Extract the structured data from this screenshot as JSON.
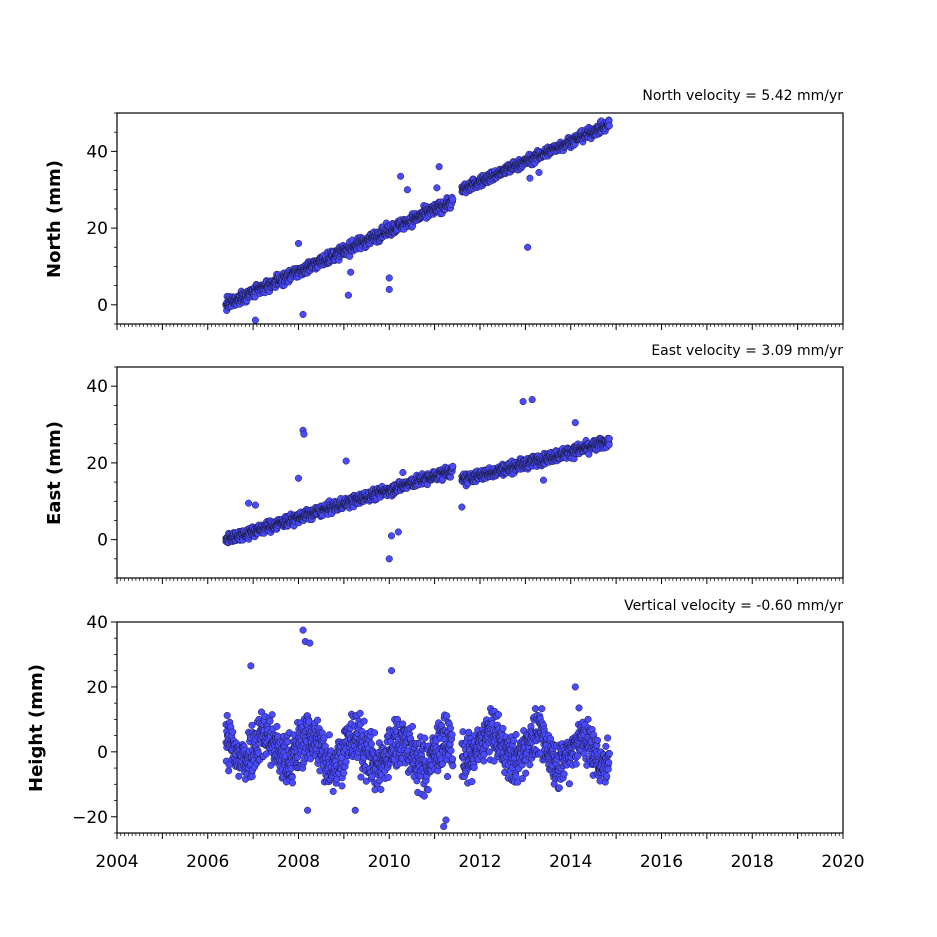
{
  "chart_data": [
    {
      "type": "scatter",
      "title": "North velocity = 5.42 mm/yr",
      "xlabel": "",
      "ylabel": "North (mm)",
      "xlim": [
        2004,
        2020
      ],
      "ylim": [
        -5,
        50
      ],
      "yticks": [
        0,
        20,
        40
      ],
      "xtick_labels_shown": false,
      "color": "#4a4aff",
      "segments": [
        {
          "x_start": 2006.4,
          "x_end": 2011.4,
          "y_start": 0,
          "y_end": 27,
          "noise": 1.5
        },
        {
          "x_start": 2011.6,
          "x_end": 2014.85,
          "y_start": 30,
          "y_end": 47,
          "noise": 1.3
        }
      ],
      "outliers": [
        {
          "x": 2007.05,
          "y": -4
        },
        {
          "x": 2008.1,
          "y": -2.5
        },
        {
          "x": 2008.0,
          "y": 16
        },
        {
          "x": 2009.1,
          "y": 2.5
        },
        {
          "x": 2009.15,
          "y": 8.5
        },
        {
          "x": 2010.0,
          "y": 7
        },
        {
          "x": 2010.0,
          "y": 4
        },
        {
          "x": 2010.25,
          "y": 33.5
        },
        {
          "x": 2010.4,
          "y": 30
        },
        {
          "x": 2011.1,
          "y": 36
        },
        {
          "x": 2011.05,
          "y": 30.5
        },
        {
          "x": 2013.05,
          "y": 15
        },
        {
          "x": 2013.1,
          "y": 33
        },
        {
          "x": 2013.3,
          "y": 34.5
        }
      ]
    },
    {
      "type": "scatter",
      "title": "East velocity = 3.09 mm/yr",
      "xlabel": "",
      "ylabel": "East (mm)",
      "xlim": [
        2004,
        2020
      ],
      "ylim": [
        -10,
        45
      ],
      "yticks": [
        0,
        20,
        40
      ],
      "xtick_labels_shown": false,
      "color": "#4a4aff",
      "segments": [
        {
          "x_start": 2006.4,
          "x_end": 2011.4,
          "y_start": 0,
          "y_end": 18,
          "noise": 1.4
        },
        {
          "x_start": 2011.6,
          "x_end": 2014.85,
          "y_start": 15.5,
          "y_end": 25.5,
          "noise": 1.4
        }
      ],
      "outliers": [
        {
          "x": 2008.1,
          "y": 28.5
        },
        {
          "x": 2008.12,
          "y": 27.5
        },
        {
          "x": 2008.0,
          "y": 16
        },
        {
          "x": 2006.9,
          "y": 9.5
        },
        {
          "x": 2007.05,
          "y": 9
        },
        {
          "x": 2009.05,
          "y": 20.5
        },
        {
          "x": 2010.0,
          "y": -5
        },
        {
          "x": 2010.05,
          "y": 1
        },
        {
          "x": 2010.2,
          "y": 2
        },
        {
          "x": 2010.3,
          "y": 17.5
        },
        {
          "x": 2011.6,
          "y": 8.5
        },
        {
          "x": 2012.95,
          "y": 36
        },
        {
          "x": 2013.15,
          "y": 36.5
        },
        {
          "x": 2013.4,
          "y": 15.5
        },
        {
          "x": 2014.1,
          "y": 30.5
        }
      ]
    },
    {
      "type": "scatter",
      "title": "Vertical velocity = -0.60 mm/yr",
      "xlabel": "",
      "ylabel": "Height (mm)",
      "xlim": [
        2004,
        2020
      ],
      "ylim": [
        -25,
        40
      ],
      "yticks": [
        -20,
        0,
        20,
        40
      ],
      "xticks": [
        2004,
        2006,
        2008,
        2010,
        2012,
        2014,
        2016,
        2018,
        2020
      ],
      "xtick_labels_shown": true,
      "color": "#4a4aff",
      "segments": [
        {
          "x_start": 2006.4,
          "x_end": 2011.4,
          "y_start": 2,
          "y_end": -1,
          "noise": 8
        },
        {
          "x_start": 2011.6,
          "x_end": 2014.85,
          "y_start": 2,
          "y_end": 0,
          "noise": 7
        }
      ],
      "outliers": [
        {
          "x": 2008.1,
          "y": 37.5
        },
        {
          "x": 2008.15,
          "y": 34
        },
        {
          "x": 2008.25,
          "y": 33.5
        },
        {
          "x": 2011.2,
          "y": -23
        },
        {
          "x": 2011.25,
          "y": -21
        },
        {
          "x": 2010.05,
          "y": 25
        },
        {
          "x": 2006.95,
          "y": 26.5
        },
        {
          "x": 2014.1,
          "y": 20
        },
        {
          "x": 2008.2,
          "y": -18
        },
        {
          "x": 2009.25,
          "y": -18
        }
      ]
    }
  ]
}
